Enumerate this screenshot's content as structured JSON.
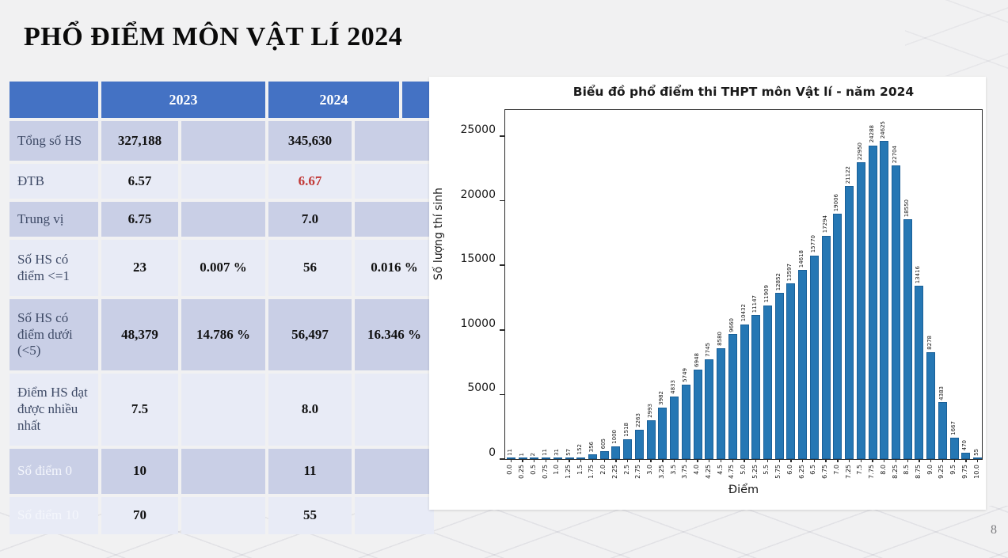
{
  "slide": {
    "title": "PHỔ ĐIỂM MÔN VẬT LÍ 2024",
    "page_number": "8"
  },
  "table": {
    "header": {
      "col0": "",
      "col_2023": "2023",
      "col_2024": "2024",
      "col_extra": ""
    },
    "rows": [
      {
        "label": "Tổng số HS",
        "cells": [
          "327,188",
          "",
          "345,630",
          ""
        ],
        "shade": "dark",
        "label_white": false,
        "red_cell": -1
      },
      {
        "label": "ĐTB",
        "cells": [
          "6.57",
          "",
          "6.67",
          ""
        ],
        "shade": "light",
        "label_white": false,
        "red_cell": 2
      },
      {
        "label": "Trung vị",
        "cells": [
          "6.75",
          "",
          "7.0",
          ""
        ],
        "shade": "dark",
        "label_white": false,
        "red_cell": -1
      },
      {
        "label": "Số HS có điểm <=1",
        "cells": [
          "23",
          "0.007 %",
          "56",
          "0.016 %"
        ],
        "shade": "light",
        "label_white": false,
        "red_cell": -1
      },
      {
        "label": "Số HS có điểm dưới (<5)",
        "cells": [
          "48,379",
          "14.786 %",
          "56,497",
          "16.346 %"
        ],
        "shade": "dark",
        "label_white": false,
        "red_cell": -1
      },
      {
        "label": "Điểm HS đạt được nhiều nhất",
        "cells": [
          "7.5",
          "",
          "8.0",
          ""
        ],
        "shade": "light",
        "label_white": false,
        "red_cell": -1
      },
      {
        "label": "Số điểm 0",
        "cells": [
          "10",
          "",
          "11",
          ""
        ],
        "shade": "dark",
        "label_white": true,
        "red_cell": -1
      },
      {
        "label": "Số điểm 10",
        "cells": [
          "70",
          "",
          "55",
          ""
        ],
        "shade": "light",
        "label_white": true,
        "red_cell": -1
      }
    ]
  },
  "chart_data": {
    "type": "bar",
    "title": "Biểu đồ phổ điểm thi THPT môn Vật lí - năm 2024",
    "xlabel": "Điểm",
    "ylabel": "Số lượng thí sinh",
    "ylim": [
      0,
      26500
    ],
    "yticks": [
      0,
      5000,
      10000,
      15000,
      20000,
      25000
    ],
    "grid": false,
    "legend": "none",
    "categories": [
      "0.0",
      "0.25",
      "0.5",
      "0.75",
      "1.0",
      "1.25",
      "1.5",
      "1.75",
      "2.0",
      "2.25",
      "2.5",
      "2.75",
      "3.0",
      "3.25",
      "3.5",
      "3.75",
      "4.0",
      "4.25",
      "4.5",
      "4.75",
      "5.0",
      "5.25",
      "5.5",
      "5.75",
      "6.0",
      "6.25",
      "6.5",
      "6.75",
      "7.0",
      "7.25",
      "7.5",
      "7.75",
      "8.0",
      "8.25",
      "8.5",
      "8.75",
      "9.0",
      "9.25",
      "9.5",
      "9.75",
      "10.0"
    ],
    "values": [
      11,
      1,
      2,
      11,
      31,
      57,
      152,
      356,
      605,
      1000,
      1518,
      2263,
      2993,
      3982,
      4833,
      5749,
      6948,
      7745,
      8580,
      9660,
      10432,
      11147,
      11909,
      12852,
      13597,
      14618,
      15770,
      17294,
      19006,
      21122,
      22950,
      24288,
      24625,
      22704,
      18550,
      13416,
      8278,
      4383,
      1667,
      470,
      55
    ]
  },
  "colors": {
    "header_blue": "#4472c4",
    "row_dark": "#c9cfe6",
    "row_light": "#e8ebf6",
    "bar_fill": "#2577b4",
    "bar_edge": "#1a6098",
    "red_value": "#c23a38"
  }
}
